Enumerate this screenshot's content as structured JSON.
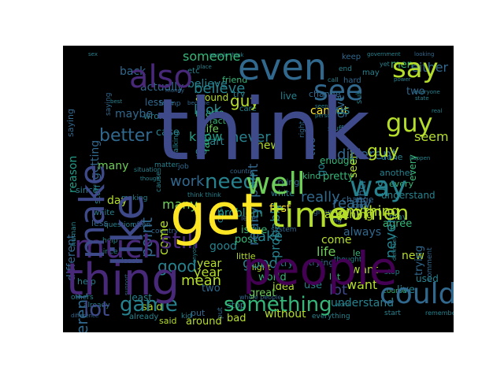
{
  "colors": {
    "background": "#000000",
    "figure": "#ffffff",
    "palette": [
      "#440154",
      "#482878",
      "#3e4989",
      "#31688e",
      "#26828e",
      "#1f9e89",
      "#35b779",
      "#6ece58",
      "#b5de2b",
      "#fde725"
    ]
  },
  "words": [
    {
      "text": "think",
      "color": "#3e4a89"
    },
    {
      "text": "people",
      "color": "#440154"
    },
    {
      "text": "like",
      "color": "#3e4989"
    },
    {
      "text": "get",
      "color": "#fde725"
    },
    {
      "text": "even",
      "color": "#31688e"
    },
    {
      "text": "thing",
      "color": "#482878"
    },
    {
      "text": "time",
      "color": "#b5de2b"
    },
    {
      "text": "well",
      "color": "#6ece58"
    },
    {
      "text": "much",
      "color": "#482878"
    },
    {
      "text": "say",
      "color": "#b5de2b"
    },
    {
      "text": "make",
      "color": "#3e4989"
    },
    {
      "text": "also",
      "color": "#482878"
    },
    {
      "text": "see",
      "color": "#31688e"
    },
    {
      "text": "way",
      "color": "#26828e"
    },
    {
      "text": "could",
      "color": "#31688e"
    },
    {
      "text": "still",
      "color": "#482878"
    },
    {
      "text": "women",
      "color": "#b5de2b"
    },
    {
      "text": "game",
      "color": "#26828e"
    },
    {
      "text": "something",
      "color": "#35b779"
    },
    {
      "text": "need",
      "color": "#26828e"
    },
    {
      "text": "guy",
      "color": "#b5de2b"
    },
    {
      "text": "going",
      "color": "#3e4989"
    },
    {
      "text": "lot",
      "color": "#3e4989"
    },
    {
      "text": "better",
      "color": "#31688e"
    },
    {
      "text": "work",
      "color": "#31688e"
    },
    {
      "text": "point",
      "color": "#31688e"
    },
    {
      "text": "really",
      "color": "#31688e"
    },
    {
      "text": "take",
      "color": "#26828e"
    },
    {
      "text": "look",
      "color": "#26828e"
    },
    {
      "text": "someone",
      "color": "#35b779"
    },
    {
      "text": "actually",
      "color": "#31688e"
    },
    {
      "text": "back",
      "color": "#31688e"
    },
    {
      "text": "many",
      "color": "#6ece58"
    },
    {
      "text": "day",
      "color": "#b5de2b"
    },
    {
      "text": "good",
      "color": "#26828e"
    },
    {
      "text": "mean",
      "color": "#b5de2b"
    },
    {
      "text": "cannot",
      "color": "#fde725"
    },
    {
      "text": "anything",
      "color": "#b5de2b"
    },
    {
      "text": "want",
      "color": "#b5de2b"
    },
    {
      "text": "us",
      "color": "#26828e"
    },
    {
      "text": "probably",
      "color": "#26828e"
    },
    {
      "text": "made",
      "color": "#35b779"
    },
    {
      "text": "never",
      "color": "#26828e"
    },
    {
      "text": "know",
      "color": "#1f9e89"
    },
    {
      "text": "first",
      "color": "#fde725"
    },
    {
      "text": "year",
      "color": "#b5de2b"
    },
    {
      "text": "come",
      "color": "#b5de2b"
    },
    {
      "text": "always",
      "color": "#31688e"
    },
    {
      "text": "different",
      "color": "#31688e"
    },
    {
      "text": "part",
      "color": "#26828e"
    },
    {
      "text": "life",
      "color": "#6ece58"
    },
    {
      "text": "believe",
      "color": "#26828e"
    },
    {
      "text": "maybe",
      "color": "#31688e"
    },
    {
      "text": "reason",
      "color": "#1f9e89"
    },
    {
      "text": "seem",
      "color": "#b5de2b"
    },
    {
      "text": "problem",
      "color": "#1f9e89"
    },
    {
      "text": "agree",
      "color": "#35b779"
    },
    {
      "text": "new",
      "color": "#b5de2b"
    },
    {
      "text": "said",
      "color": "#b5de2b"
    },
    {
      "text": "great",
      "color": "#6ece58"
    },
    {
      "text": "around",
      "color": "#b5de2b"
    },
    {
      "text": "feel",
      "color": "#31688e"
    },
    {
      "text": "go",
      "color": "#26828e"
    },
    {
      "text": "give",
      "color": "#31688e"
    },
    {
      "text": "two",
      "color": "#31688e"
    },
    {
      "text": "either",
      "color": "#31688e"
    },
    {
      "text": "done",
      "color": "#26828e"
    },
    {
      "text": "enough",
      "color": "#35b779"
    },
    {
      "text": "pretty",
      "color": "#35b779"
    },
    {
      "text": "idea",
      "color": "#b5de2b"
    },
    {
      "text": "use",
      "color": "#26828e"
    },
    {
      "text": "post",
      "color": "#35b779"
    },
    {
      "text": "world",
      "color": "#35b779"
    },
    {
      "text": "issue",
      "color": "#35b779"
    },
    {
      "text": "without",
      "color": "#b5de2b"
    },
    {
      "text": "bad",
      "color": "#b5de2b"
    },
    {
      "text": "understand",
      "color": "#26828e"
    },
    {
      "text": "another",
      "color": "#26828e"
    },
    {
      "text": "men",
      "color": "#35b779"
    },
    {
      "text": "getting",
      "color": "#31688e"
    },
    {
      "text": "case",
      "color": "#26828e"
    },
    {
      "text": "wrong",
      "color": "#26828e"
    },
    {
      "text": "fact",
      "color": "#35b779"
    },
    {
      "text": "less",
      "color": "#31688e"
    },
    {
      "text": "white",
      "color": "#26828e"
    },
    {
      "text": "play",
      "color": "#26828e"
    },
    {
      "text": "show",
      "color": "#35b779"
    },
    {
      "text": "little",
      "color": "#b5de2b"
    },
    {
      "text": "might",
      "color": "#b5de2b"
    },
    {
      "text": "kind",
      "color": "#35b779"
    },
    {
      "text": "every",
      "color": "#35b779"
    },
    {
      "text": "trying",
      "color": "#31688e"
    },
    {
      "text": "let",
      "color": "#35b779"
    },
    {
      "text": "used",
      "color": "#26828e"
    },
    {
      "text": "live",
      "color": "#26828e"
    },
    {
      "text": "change",
      "color": "#31688e"
    },
    {
      "text": "friend",
      "color": "#35b779"
    },
    {
      "text": "try",
      "color": "#26828e"
    },
    {
      "text": "care",
      "color": "#26828e"
    },
    {
      "text": "stuff",
      "color": "#26828e"
    },
    {
      "text": "saying",
      "color": "#31688e"
    },
    {
      "text": "etc",
      "color": "#26828e"
    },
    {
      "text": "end",
      "color": "#26828e"
    },
    {
      "text": "keep",
      "color": "#31688e"
    },
    {
      "text": "may",
      "color": "#26828e"
    },
    {
      "text": "hard",
      "color": "#31688e"
    },
    {
      "text": "sub",
      "color": "#26828e"
    },
    {
      "text": "comment",
      "color": "#31688e"
    },
    {
      "text": "thought",
      "color": "#26828e"
    },
    {
      "text": "since",
      "color": "#26828e"
    },
    {
      "text": "help",
      "color": "#26828e"
    },
    {
      "text": "least",
      "color": "#26828e"
    },
    {
      "text": "already",
      "color": "#26828e"
    },
    {
      "text": "kid",
      "color": "#26828e"
    },
    {
      "text": "put",
      "color": "#31688e"
    },
    {
      "text": "stop",
      "color": "#26828e"
    },
    {
      "text": "start",
      "color": "#26828e"
    },
    {
      "text": "everything",
      "color": "#26828e"
    },
    {
      "text": "difference",
      "color": "#31688e"
    },
    {
      "text": "remember",
      "color": "#26828e"
    },
    {
      "text": "matter",
      "color": "#26828e"
    },
    {
      "text": "course",
      "color": "#35b779"
    },
    {
      "text": "making",
      "color": "#26828e"
    },
    {
      "text": "talking",
      "color": "#26828e"
    },
    {
      "text": "trump",
      "color": "#31688e"
    },
    {
      "text": "job",
      "color": "#31688e"
    },
    {
      "text": "cause",
      "color": "#26828e"
    },
    {
      "text": "government",
      "color": "#26828e"
    },
    {
      "text": "looking",
      "color": "#31688e"
    },
    {
      "text": "call",
      "color": "#26828e"
    },
    {
      "text": "yet",
      "color": "#26828e"
    },
    {
      "text": "power",
      "color": "#26828e"
    },
    {
      "text": "state",
      "color": "#26828e"
    },
    {
      "text": "right",
      "color": "#31688e"
    },
    {
      "text": "big",
      "color": "#31688e"
    },
    {
      "text": "group",
      "color": "#31688e"
    },
    {
      "text": "level",
      "color": "#31688e"
    },
    {
      "text": "country",
      "color": "#31688e"
    },
    {
      "text": "question",
      "color": "#26828e"
    },
    {
      "text": "often",
      "color": "#31688e"
    },
    {
      "text": "long",
      "color": "#31688e"
    },
    {
      "text": "system",
      "color": "#31688e"
    },
    {
      "text": "others",
      "color": "#26828e"
    },
    {
      "text": "person",
      "color": "#26828e"
    },
    {
      "text": "think think",
      "color": "#26828e"
    },
    {
      "text": "money",
      "color": "#31688e"
    },
    {
      "text": "seen",
      "color": "#26828e"
    },
    {
      "text": "best",
      "color": "#26828e"
    },
    {
      "text": "become",
      "color": "#31688e"
    },
    {
      "text": "place",
      "color": "#26828e"
    },
    {
      "text": "sure",
      "color": "#26828e"
    },
    {
      "text": "human",
      "color": "#26828e"
    },
    {
      "text": "support",
      "color": "#31688e"
    },
    {
      "text": "situation",
      "color": "#26828e"
    },
    {
      "text": "word",
      "color": "#26828e"
    },
    {
      "text": "everyone",
      "color": "#26828e"
    },
    {
      "text": "though",
      "color": "#26828e"
    },
    {
      "text": "people think",
      "color": "#26828e"
    },
    {
      "text": "happen",
      "color": "#26828e"
    },
    {
      "text": "real",
      "color": "#26828e"
    },
    {
      "text": "sex",
      "color": "#26828e"
    },
    {
      "text": "definitely",
      "color": "#26828e"
    },
    {
      "text": "anyone",
      "color": "#26828e"
    },
    {
      "text": "whole people",
      "color": "#31688e"
    }
  ]
}
